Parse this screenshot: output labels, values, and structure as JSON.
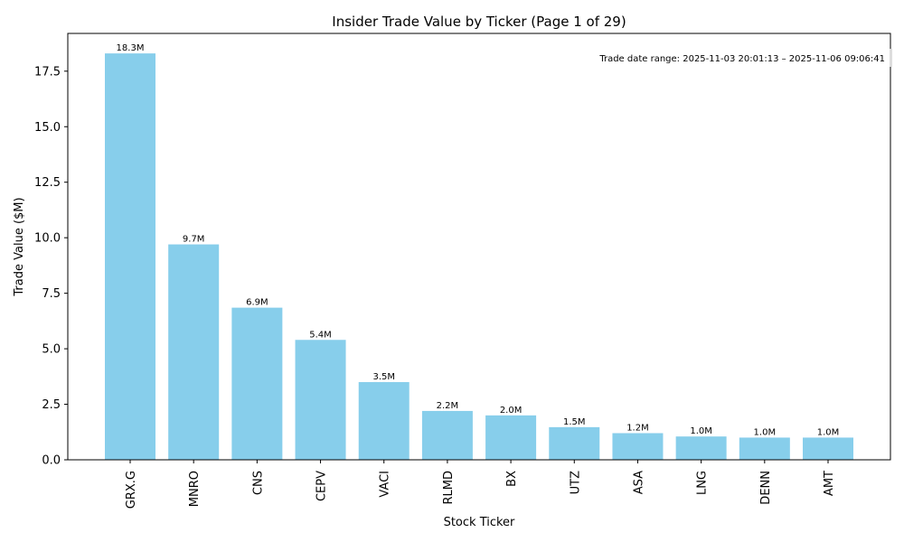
{
  "colors": {
    "bar": "#87ceeb",
    "axis": "#000000",
    "text": "#000000"
  },
  "chart_data": {
    "type": "bar",
    "title": "Insider Trade Value by Ticker (Page 1 of 29)",
    "xlabel": "Stock Ticker",
    "ylabel": "Trade Value ($M)",
    "ylim": [
      0,
      19.2
    ],
    "yticks": [
      "0.0",
      "2.5",
      "5.0",
      "7.5",
      "10.0",
      "12.5",
      "15.0",
      "17.5"
    ],
    "categories": [
      "GRX.G",
      "MNRO",
      "CNS",
      "CEPV",
      "VACI",
      "RLMD",
      "BX",
      "UTZ",
      "ASA",
      "LNG",
      "DENN",
      "AMT"
    ],
    "values": [
      18.3,
      9.7,
      6.85,
      5.4,
      3.5,
      2.2,
      2.0,
      1.47,
      1.2,
      1.05,
      1.0,
      1.0
    ],
    "data_labels": [
      "18.3M",
      "9.7M",
      "6.9M",
      "5.4M",
      "3.5M",
      "2.2M",
      "2.0M",
      "1.5M",
      "1.2M",
      "1.0M",
      "1.0M",
      "1.0M"
    ],
    "annotation": "Trade date range: 2025-11-03 20:01:13 – 2025-11-06 09:06:41",
    "grid": false
  }
}
